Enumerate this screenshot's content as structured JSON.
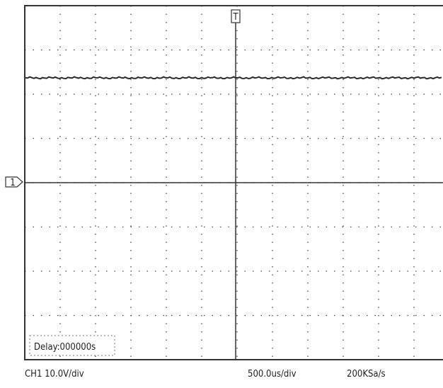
{
  "screen": {
    "trigger_marker": "T",
    "channel_marker": "1",
    "delay": "Delay:000000s"
  },
  "status_bar": {
    "channel_scale": "CH1 10.0V/div",
    "timebase": "500.0us/div",
    "sample_rate": "200KSa/s"
  }
}
